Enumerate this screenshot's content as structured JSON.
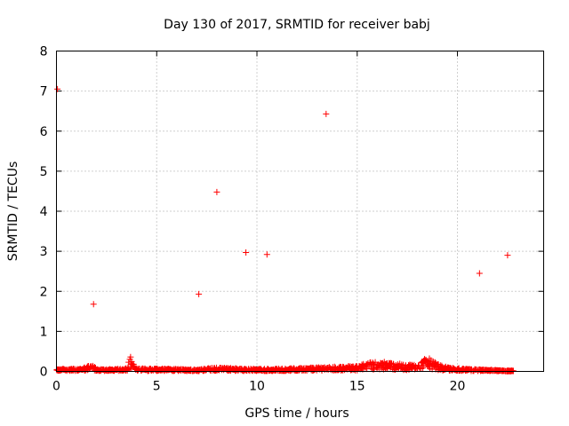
{
  "chart_data": {
    "type": "scatter",
    "title": "Day 130 of 2017, SRMTID for receiver babj",
    "xlabel": "GPS time / hours",
    "ylabel": "SRMTID / TECUs",
    "xlim": [
      0,
      24.3
    ],
    "ylim": [
      0,
      8
    ],
    "xticks": [
      0,
      5,
      10,
      15,
      20
    ],
    "yticks": [
      0,
      1,
      2,
      3,
      4,
      5,
      6,
      7,
      8
    ],
    "grid": true,
    "marker": "+",
    "color": "#ff0000",
    "series": [
      {
        "name": "SRMTID",
        "outliers": [
          {
            "x": 0.05,
            "y": 7.05
          },
          {
            "x": 1.85,
            "y": 1.68
          },
          {
            "x": 7.1,
            "y": 1.93
          },
          {
            "x": 8.0,
            "y": 4.48
          },
          {
            "x": 9.45,
            "y": 2.97
          },
          {
            "x": 10.5,
            "y": 2.92
          },
          {
            "x": 13.45,
            "y": 6.43
          },
          {
            "x": 21.1,
            "y": 2.45
          },
          {
            "x": 22.5,
            "y": 2.9
          }
        ],
        "baseline_profile": [
          {
            "x": 0.0,
            "y": 0.05
          },
          {
            "x": 0.5,
            "y": 0.08
          },
          {
            "x": 1.0,
            "y": 0.06
          },
          {
            "x": 1.5,
            "y": 0.12
          },
          {
            "x": 1.8,
            "y": 0.18
          },
          {
            "x": 2.0,
            "y": 0.05
          },
          {
            "x": 3.0,
            "y": 0.06
          },
          {
            "x": 3.5,
            "y": 0.1
          },
          {
            "x": 3.7,
            "y": 0.4
          },
          {
            "x": 3.9,
            "y": 0.08
          },
          {
            "x": 5.0,
            "y": 0.07
          },
          {
            "x": 6.0,
            "y": 0.06
          },
          {
            "x": 7.0,
            "y": 0.05
          },
          {
            "x": 8.0,
            "y": 0.1
          },
          {
            "x": 9.0,
            "y": 0.08
          },
          {
            "x": 10.0,
            "y": 0.06
          },
          {
            "x": 11.0,
            "y": 0.07
          },
          {
            "x": 12.0,
            "y": 0.08
          },
          {
            "x": 13.0,
            "y": 0.1
          },
          {
            "x": 14.0,
            "y": 0.12
          },
          {
            "x": 15.0,
            "y": 0.14
          },
          {
            "x": 15.5,
            "y": 0.22
          },
          {
            "x": 16.0,
            "y": 0.26
          },
          {
            "x": 16.5,
            "y": 0.24
          },
          {
            "x": 17.0,
            "y": 0.2
          },
          {
            "x": 17.5,
            "y": 0.16
          },
          {
            "x": 18.0,
            "y": 0.22
          },
          {
            "x": 18.5,
            "y": 0.35
          },
          {
            "x": 19.0,
            "y": 0.18
          },
          {
            "x": 19.5,
            "y": 0.1
          },
          {
            "x": 20.0,
            "y": 0.08
          },
          {
            "x": 20.5,
            "y": 0.06
          },
          {
            "x": 21.0,
            "y": 0.05
          },
          {
            "x": 22.0,
            "y": 0.03
          },
          {
            "x": 22.8,
            "y": 0.02
          }
        ]
      }
    ]
  }
}
